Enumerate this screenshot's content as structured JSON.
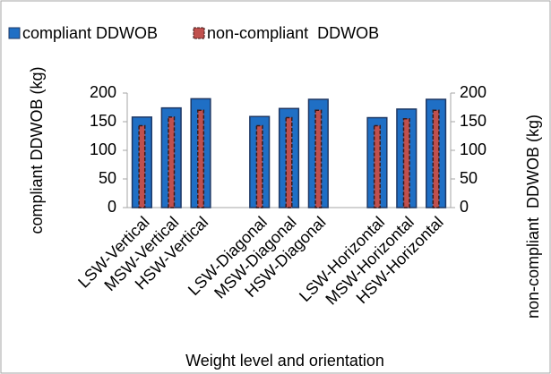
{
  "chart_data": {
    "type": "bar",
    "categories": [
      "LSW-Vertical",
      "MSW-Vertical",
      "HSW-Vertical",
      null,
      "LSW-Diagonal",
      "MSW-Diagonal",
      "HSW-Diagonal",
      null,
      "LSW-Horizontal",
      "MSW-Horizontal",
      "HSW-Horizontal"
    ],
    "series": [
      {
        "name": "compliant DDWOB",
        "color": "#1f6fc5",
        "values": [
          158,
          174,
          190,
          null,
          159,
          173,
          189,
          null,
          157,
          172,
          189
        ]
      },
      {
        "name": "non-compliant  DDWOB",
        "color": "#c0504d",
        "axis": "y2",
        "values": [
          143,
          158,
          170,
          null,
          143,
          157,
          170,
          null,
          143,
          155,
          170
        ]
      }
    ],
    "x_label": "Weight level and orientation",
    "y_label": "compliant DDWOB (kg)",
    "y2_label": "non-compliant  DDWOB (kg)",
    "ylim": [
      0,
      200
    ],
    "yticks": [
      0,
      50,
      100,
      150,
      200
    ],
    "y2lim": [
      0,
      200
    ],
    "y2ticks": [
      0,
      50,
      100,
      150,
      200
    ],
    "legend": "top",
    "grid": false
  }
}
